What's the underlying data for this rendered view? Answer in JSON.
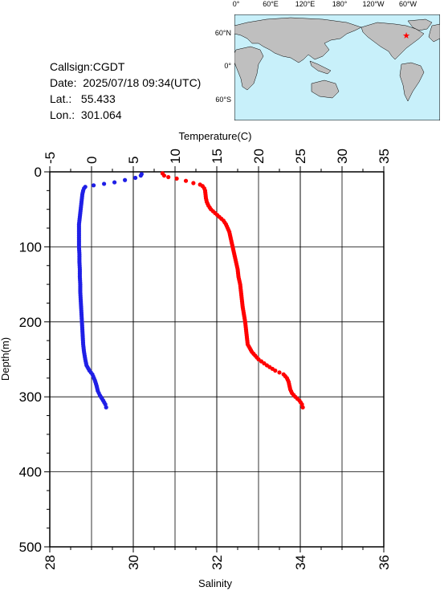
{
  "station": {
    "callsign_label": "Callsign:",
    "callsign": "CGDT",
    "date_label": "Date:",
    "date": "2025/07/18 09:34(UTC)",
    "lat_label": "Lat.:",
    "lat": "55.433",
    "lon_label": "Lon.:",
    "lon": "301.064"
  },
  "map": {
    "lon_ticks": [
      "0°",
      "60°E",
      "120°E",
      "180°",
      "120°W",
      "60°W"
    ],
    "lat_ticks": [
      "60°N",
      "0°",
      "60°S"
    ],
    "ocean_color": "#c8f0fa",
    "land_color": "#bfbfbf",
    "marker_color": "#ff0000",
    "marker_symbol": "star-icon"
  },
  "chart_data": {
    "type": "scatter",
    "ylabel": "Depth(m)",
    "ylim": [
      0,
      500
    ],
    "y_ticks": [
      0,
      100,
      200,
      300,
      400,
      500
    ],
    "y_inverted": true,
    "top_axis": {
      "label": "Temperature(C)",
      "range": [
        -5,
        35
      ],
      "ticks": [
        -5,
        0,
        5,
        10,
        15,
        20,
        25,
        30,
        35
      ]
    },
    "bottom_axis": {
      "label": "Salinity",
      "range": [
        28,
        36
      ],
      "ticks": [
        28,
        30,
        32,
        34,
        36
      ]
    },
    "grid": true,
    "series": [
      {
        "axis": "bottom",
        "color": "#1f1fe6",
        "points": [
          [
            30.2,
            3
          ],
          [
            30.18,
            5
          ],
          [
            30.05,
            8
          ],
          [
            29.8,
            11
          ],
          [
            29.55,
            14
          ],
          [
            29.3,
            16
          ],
          [
            29.05,
            18
          ],
          [
            28.85,
            20
          ],
          [
            28.82,
            22
          ],
          [
            28.8,
            25
          ],
          [
            28.78,
            30
          ],
          [
            28.76,
            40
          ],
          [
            28.74,
            50
          ],
          [
            28.72,
            60
          ],
          [
            28.7,
            70
          ],
          [
            28.7,
            80
          ],
          [
            28.7,
            90
          ],
          [
            28.7,
            100
          ],
          [
            28.71,
            110
          ],
          [
            28.71,
            120
          ],
          [
            28.72,
            130
          ],
          [
            28.72,
            140
          ],
          [
            28.73,
            150
          ],
          [
            28.73,
            160
          ],
          [
            28.74,
            170
          ],
          [
            28.75,
            180
          ],
          [
            28.76,
            190
          ],
          [
            28.77,
            200
          ],
          [
            28.78,
            210
          ],
          [
            28.79,
            220
          ],
          [
            28.8,
            230
          ],
          [
            28.82,
            240
          ],
          [
            28.85,
            250
          ],
          [
            28.88,
            258
          ],
          [
            28.95,
            265
          ],
          [
            29.02,
            270
          ],
          [
            29.08,
            278
          ],
          [
            29.12,
            285
          ],
          [
            29.15,
            292
          ],
          [
            29.2,
            298
          ],
          [
            29.28,
            305
          ],
          [
            29.33,
            310
          ],
          [
            29.35,
            314
          ]
        ]
      },
      {
        "axis": "top",
        "color": "#ff0000",
        "points": [
          [
            8.5,
            2
          ],
          [
            8.7,
            5
          ],
          [
            9.2,
            7
          ],
          [
            10.2,
            9
          ],
          [
            11.3,
            12
          ],
          [
            12.2,
            15
          ],
          [
            13.0,
            17
          ],
          [
            13.3,
            19
          ],
          [
            13.5,
            22
          ],
          [
            13.6,
            25
          ],
          [
            13.65,
            30
          ],
          [
            13.7,
            35
          ],
          [
            13.8,
            40
          ],
          [
            14.0,
            45
          ],
          [
            14.3,
            50
          ],
          [
            14.8,
            55
          ],
          [
            15.3,
            60
          ],
          [
            15.8,
            65
          ],
          [
            16.1,
            70
          ],
          [
            16.3,
            75
          ],
          [
            16.5,
            80
          ],
          [
            16.7,
            90
          ],
          [
            16.9,
            100
          ],
          [
            17.1,
            110
          ],
          [
            17.3,
            120
          ],
          [
            17.5,
            130
          ],
          [
            17.6,
            140
          ],
          [
            17.8,
            150
          ],
          [
            17.9,
            160
          ],
          [
            18.0,
            170
          ],
          [
            18.1,
            180
          ],
          [
            18.25,
            190
          ],
          [
            18.4,
            200
          ],
          [
            18.5,
            210
          ],
          [
            18.6,
            220
          ],
          [
            18.7,
            230
          ],
          [
            19.2,
            240
          ],
          [
            20.0,
            250
          ],
          [
            21.0,
            258
          ],
          [
            22.0,
            265
          ],
          [
            23.0,
            270
          ],
          [
            23.4,
            275
          ],
          [
            23.6,
            280
          ],
          [
            23.7,
            285
          ],
          [
            23.8,
            290
          ],
          [
            24.0,
            295
          ],
          [
            24.4,
            300
          ],
          [
            24.9,
            305
          ],
          [
            25.2,
            310
          ],
          [
            25.3,
            314
          ]
        ]
      }
    ]
  }
}
